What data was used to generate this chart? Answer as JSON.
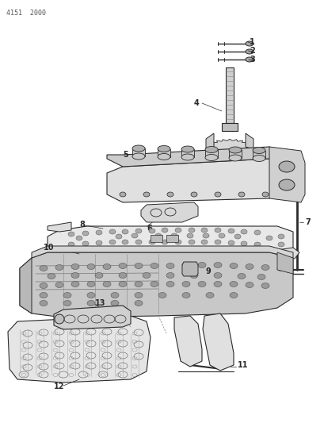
{
  "header_text": "4151  2000",
  "background_color": "#ffffff",
  "line_color": "#2a2a2a",
  "figsize": [
    4.1,
    5.33
  ],
  "dpi": 100
}
